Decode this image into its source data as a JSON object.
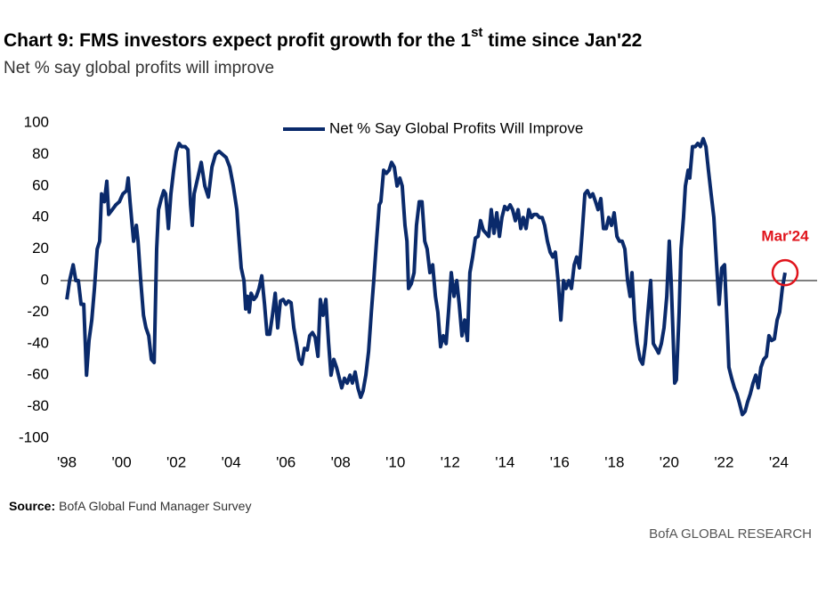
{
  "chart_data": {
    "type": "line",
    "title": [
      "Chart 9: FMS investors expect profit growth for the 1",
      "st",
      " time since Jan'22"
    ],
    "subtitle": "Net % say global profits will improve",
    "source_label": "Source:",
    "source": "BofA Global Fund Manager Survey",
    "brand": "BofA GLOBAL RESEARCH",
    "annotation": "Mar'24",
    "annotation_color": "#e0141c",
    "legend": "top-center",
    "xlim": [
      1997.77,
      2025.4
    ],
    "ylim": [
      -100,
      100
    ],
    "yticks": [
      100,
      80,
      60,
      40,
      20,
      0,
      -20,
      -40,
      -60,
      -80,
      -100
    ],
    "xticks": [
      {
        "value": 1998,
        "label": "'98"
      },
      {
        "value": 2000,
        "label": "'00"
      },
      {
        "value": 2002,
        "label": "'02"
      },
      {
        "value": 2004,
        "label": "'04"
      },
      {
        "value": 2006,
        "label": "'06"
      },
      {
        "value": 2008,
        "label": "'08"
      },
      {
        "value": 2010,
        "label": "'10"
      },
      {
        "value": 2012,
        "label": "'12"
      },
      {
        "value": 2014,
        "label": "'14"
      },
      {
        "value": 2016,
        "label": "'16"
      },
      {
        "value": 2018,
        "label": "'18"
      },
      {
        "value": 2020,
        "label": "'20"
      },
      {
        "value": 2022,
        "label": "'22"
      },
      {
        "value": 2024,
        "label": "'24"
      }
    ],
    "x": [
      1998.0,
      1998.1,
      1998.23,
      1998.33,
      1998.42,
      1998.52,
      1998.62,
      1998.72,
      1998.81,
      1998.91,
      1999.01,
      1999.11,
      1999.2,
      1999.27,
      1999.37,
      1999.46,
      1999.53,
      1999.66,
      1999.79,
      1999.92,
      2000.05,
      2000.18,
      2000.24,
      2000.31,
      2000.37,
      2000.44,
      2000.54,
      2000.6,
      2000.7,
      2000.8,
      2000.89,
      2000.99,
      2001.09,
      2001.19,
      2001.28,
      2001.35,
      2001.45,
      2001.54,
      2001.61,
      2001.71,
      2001.8,
      2001.9,
      2002.0,
      2002.1,
      2002.19,
      2002.32,
      2002.42,
      2002.52,
      2002.58,
      2002.65,
      2002.78,
      2002.91,
      2003.04,
      2003.17,
      2003.3,
      2003.43,
      2003.56,
      2003.69,
      2003.82,
      2003.95,
      2004.08,
      2004.21,
      2004.27,
      2004.37,
      2004.47,
      2004.53,
      2004.6,
      2004.66,
      2004.73,
      2004.83,
      2004.92,
      2005.02,
      2005.12,
      2005.22,
      2005.31,
      2005.41,
      2005.51,
      2005.61,
      2005.7,
      2005.8,
      2005.9,
      2006.0,
      2006.09,
      2006.19,
      2006.29,
      2006.39,
      2006.48,
      2006.58,
      2006.68,
      2006.78,
      2006.87,
      2006.97,
      2007.07,
      2007.17,
      2007.26,
      2007.36,
      2007.46,
      2007.56,
      2007.65,
      2007.75,
      2007.85,
      2007.95,
      2008.04,
      2008.14,
      2008.24,
      2008.34,
      2008.43,
      2008.53,
      2008.63,
      2008.73,
      2008.82,
      2008.92,
      2009.02,
      2009.12,
      2009.21,
      2009.31,
      2009.41,
      2009.47,
      2009.57,
      2009.67,
      2009.77,
      2009.86,
      2009.96,
      2010.06,
      2010.16,
      2010.25,
      2010.35,
      2010.42,
      2010.48,
      2010.58,
      2010.68,
      2010.77,
      2010.87,
      2010.97,
      2011.07,
      2011.16,
      2011.26,
      2011.36,
      2011.46,
      2011.55,
      2011.65,
      2011.75,
      2011.85,
      2011.94,
      2012.04,
      2012.14,
      2012.24,
      2012.33,
      2012.43,
      2012.53,
      2012.63,
      2012.72,
      2012.82,
      2012.92,
      2013.02,
      2013.11,
      2013.21,
      2013.31,
      2013.41,
      2013.5,
      2013.6,
      2013.7,
      2013.8,
      2013.89,
      2013.99,
      2014.09,
      2014.19,
      2014.28,
      2014.38,
      2014.48,
      2014.58,
      2014.67,
      2014.77,
      2014.87,
      2014.97,
      2015.06,
      2015.16,
      2015.26,
      2015.36,
      2015.45,
      2015.55,
      2015.65,
      2015.75,
      2015.84,
      2015.94,
      2016.04,
      2016.14,
      2016.23,
      2016.33,
      2016.43,
      2016.53,
      2016.62,
      2016.72,
      2016.82,
      2016.92,
      2017.01,
      2017.11,
      2017.21,
      2017.31,
      2017.4,
      2017.5,
      2017.6,
      2017.7,
      2017.79,
      2017.89,
      2017.99,
      2018.09,
      2018.18,
      2018.28,
      2018.38,
      2018.48,
      2018.57,
      2018.64,
      2018.74,
      2018.83,
      2018.93,
      2019.03,
      2019.13,
      2019.22,
      2019.32,
      2019.42,
      2019.52,
      2019.61,
      2019.71,
      2019.81,
      2019.91,
      2020.0,
      2020.07,
      2020.13,
      2020.2,
      2020.26,
      2020.36,
      2020.43,
      2020.52,
      2020.59,
      2020.69,
      2020.75,
      2020.85,
      2020.95,
      2021.04,
      2021.14,
      2021.24,
      2021.34,
      2021.43,
      2021.53,
      2021.63,
      2021.73,
      2021.82,
      2021.92,
      2022.02,
      2022.12,
      2022.18,
      2022.28,
      2022.38,
      2022.47,
      2022.57,
      2022.67,
      2022.77,
      2022.86,
      2022.96,
      2023.06,
      2023.16,
      2023.25,
      2023.35,
      2023.45,
      2023.55,
      2023.64,
      2023.74,
      2023.84,
      2023.94,
      2024.03,
      2024.13,
      2024.23
    ],
    "series": [
      {
        "name": "Net % Say Global Profits Will Improve",
        "color": "#0a2a6b",
        "values": [
          -12,
          0,
          10,
          0,
          0,
          -15,
          -15,
          -60,
          -38,
          -25,
          -5,
          20,
          25,
          55,
          50,
          63,
          42,
          45,
          48,
          50,
          55,
          57,
          65,
          50,
          38,
          25,
          35,
          25,
          0,
          -22,
          -30,
          -35,
          -50,
          -52,
          20,
          45,
          52,
          57,
          55,
          33,
          55,
          70,
          82,
          87,
          85,
          85,
          83,
          48,
          35,
          55,
          65,
          75,
          60,
          53,
          72,
          80,
          82,
          80,
          78,
          72,
          60,
          45,
          30,
          8,
          0,
          -18,
          -10,
          -20,
          -8,
          -12,
          -10,
          -5,
          3,
          -15,
          -34,
          -34,
          -22,
          -8,
          -30,
          -13,
          -12,
          -15,
          -13,
          -14,
          -30,
          -40,
          -50,
          -53,
          -43,
          -44,
          -35,
          -33,
          -36,
          -48,
          -12,
          -22,
          -12,
          -40,
          -60,
          -50,
          -55,
          -62,
          -68,
          -62,
          -65,
          -60,
          -65,
          -58,
          -68,
          -74,
          -70,
          -60,
          -45,
          -20,
          0,
          25,
          48,
          50,
          70,
          68,
          70,
          75,
          72,
          60,
          65,
          60,
          35,
          25,
          -5,
          -2,
          5,
          35,
          50,
          50,
          25,
          20,
          5,
          10,
          -10,
          -20,
          -42,
          -35,
          -40,
          -20,
          5,
          -10,
          0,
          -15,
          -35,
          -25,
          -38,
          5,
          15,
          27,
          28,
          38,
          32,
          30,
          28,
          45,
          30,
          43,
          28,
          40,
          47,
          45,
          48,
          45,
          38,
          45,
          33,
          40,
          33,
          45,
          40,
          42,
          42,
          40,
          40,
          35,
          25,
          18,
          15,
          18,
          0,
          -25,
          0,
          -5,
          0,
          -5,
          10,
          15,
          8,
          30,
          55,
          57,
          53,
          55,
          50,
          45,
          52,
          33,
          33,
          40,
          35,
          43,
          28,
          25,
          25,
          20,
          0,
          -10,
          5,
          -25,
          -40,
          -50,
          -53,
          -40,
          -20,
          0,
          -40,
          -43,
          -46,
          -40,
          -30,
          -10,
          25,
          0,
          -30,
          -65,
          -63,
          -20,
          20,
          40,
          60,
          70,
          65,
          85,
          85,
          87,
          85,
          90,
          85,
          70,
          55,
          40,
          10,
          -15,
          8,
          10,
          -30,
          -55,
          -62,
          -68,
          -72,
          -78,
          -85,
          -83,
          -77,
          -72,
          -65,
          -60,
          -68,
          -55,
          -50,
          -48,
          -35,
          -38,
          -37,
          -25,
          -20,
          -5,
          5
        ]
      }
    ]
  }
}
